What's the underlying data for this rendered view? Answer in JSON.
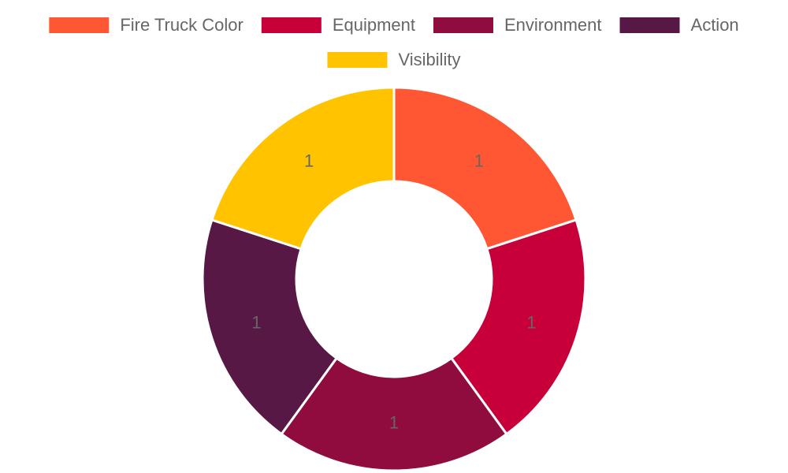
{
  "chart_data": {
    "type": "doughnut",
    "categories": [
      "Fire Truck Color",
      "Equipment",
      "Environment",
      "Action",
      "Visibility"
    ],
    "values": [
      1,
      1,
      1,
      1,
      1
    ],
    "colors": [
      "#FF5733",
      "#C70039",
      "#900C3F",
      "#581845",
      "#FFC300"
    ],
    "legend": "top"
  }
}
